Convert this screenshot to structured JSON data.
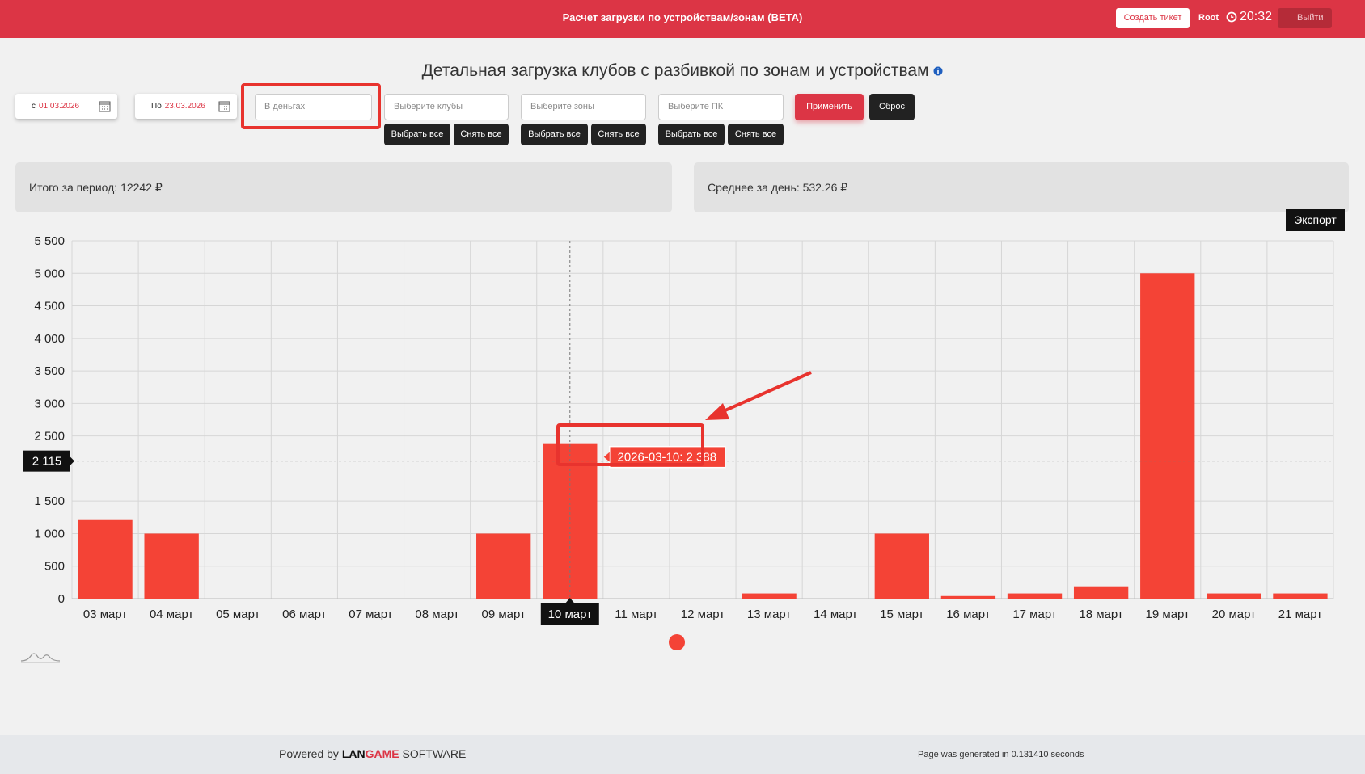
{
  "header": {
    "title": "Расчет загрузки по устройствам/зонам (BETA)",
    "ticket_button": "Создать тикет",
    "user": "Root",
    "time": "20:32",
    "logout": "Выйти"
  },
  "page_title": "Детальная загрузка клубов с разбивкой по зонам и устройствам",
  "filters": {
    "date_from": {
      "prefix": "с",
      "value": "01.03.2026"
    },
    "date_to": {
      "prefix": "По",
      "value": "23.03.2026"
    },
    "mode_placeholder": "В деньгах",
    "clubs_placeholder": "Выберите клубы",
    "zones_placeholder": "Выберите зоны",
    "pc_placeholder": "Выберите ПК",
    "select_all": "Выбрать все",
    "clear_all": "Снять все",
    "apply": "Применить",
    "reset": "Сброс"
  },
  "summary": {
    "total": "Итого за период: 12242 ₽",
    "daily_average": "Среднее за день: 532.26 ₽"
  },
  "export": "Экспорт",
  "chart_data": {
    "type": "bar",
    "categories": [
      "03 март",
      "04 март",
      "05 март",
      "06 март",
      "07 март",
      "08 март",
      "09 март",
      "10 март",
      "11 март",
      "12 март",
      "13 март",
      "14 март",
      "15 март",
      "16 март",
      "17 март",
      "18 март",
      "19 март",
      "20 март",
      "21 март"
    ],
    "values": [
      1220,
      1000,
      0,
      0,
      0,
      0,
      1000,
      2388,
      0,
      0,
      80,
      0,
      1000,
      40,
      80,
      190,
      5000,
      80,
      80
    ],
    "color": "#f44336",
    "ylim": [
      0,
      5500
    ],
    "yticks": [
      0,
      500,
      {
        "value": 1000,
        "label": "1 000"
      },
      {
        "value": 1500,
        "label": "1 500"
      },
      {
        "value": 2500,
        "label": "2 500"
      },
      {
        "value": 3000,
        "label": "3 000"
      },
      {
        "value": 3500,
        "label": "3 500"
      },
      {
        "value": 4000,
        "label": "4 000"
      },
      {
        "value": 4500,
        "label": "4 500"
      },
      {
        "value": 5000,
        "label": "5 000"
      },
      {
        "value": 5500,
        "label": "5 500"
      }
    ],
    "grid": true,
    "tooltip": "2026-03-10: 2 388",
    "crosshair": {
      "category": "10 март",
      "y": {
        "value": 2115,
        "label": "2 115"
      }
    }
  },
  "footer": {
    "powered_by": "Powered by",
    "brand_lan": "LAN",
    "brand_game": "GAME",
    "brand_suffix": "SOFTWARE",
    "generated": "Page was generated in 0.131410 seconds"
  }
}
